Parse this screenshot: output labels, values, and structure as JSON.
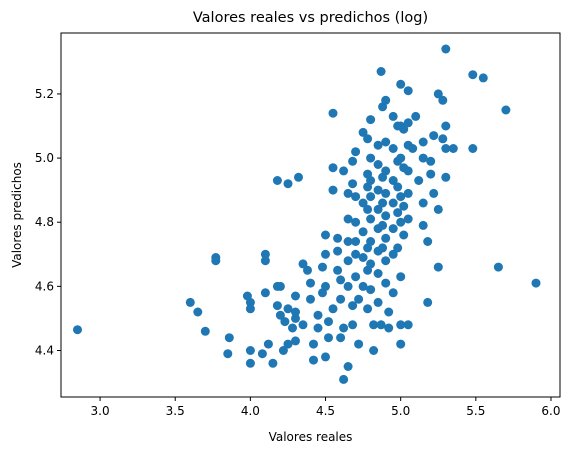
{
  "chart_data": {
    "type": "scatter",
    "title": "Valores reales vs predichos (log)",
    "xlabel": "Valores reales",
    "ylabel": "Valores predichos",
    "xlim": [
      2.74,
      6.06
    ],
    "ylim": [
      4.255,
      5.39
    ],
    "xticks": [
      "3.0",
      "3.5",
      "4.0",
      "4.5",
      "5.0",
      "5.5",
      "6.0"
    ],
    "yticks": [
      "4.4",
      "4.6",
      "4.8",
      "5.0",
      "5.2"
    ],
    "grid": false,
    "marker_color": "#1f77b4",
    "points": [
      [
        2.85,
        4.465
      ],
      [
        3.6,
        4.55
      ],
      [
        3.65,
        4.52
      ],
      [
        3.7,
        4.46
      ],
      [
        3.77,
        4.69
      ],
      [
        3.77,
        4.68
      ],
      [
        3.85,
        4.39
      ],
      [
        3.86,
        4.44
      ],
      [
        3.98,
        4.57
      ],
      [
        4.0,
        4.55
      ],
      [
        4.0,
        4.53
      ],
      [
        4.0,
        4.4
      ],
      [
        4.0,
        4.36
      ],
      [
        4.08,
        4.39
      ],
      [
        4.1,
        4.7
      ],
      [
        4.1,
        4.68
      ],
      [
        4.1,
        4.58
      ],
      [
        4.12,
        4.42
      ],
      [
        4.15,
        4.36
      ],
      [
        4.18,
        4.93
      ],
      [
        4.18,
        4.6
      ],
      [
        4.18,
        4.54
      ],
      [
        4.2,
        4.6
      ],
      [
        4.2,
        4.51
      ],
      [
        4.22,
        4.4
      ],
      [
        4.23,
        4.49
      ],
      [
        4.25,
        4.92
      ],
      [
        4.25,
        4.53
      ],
      [
        4.25,
        4.42
      ],
      [
        4.28,
        4.47
      ],
      [
        4.3,
        4.57
      ],
      [
        4.3,
        4.43
      ],
      [
        4.32,
        4.94
      ],
      [
        4.3,
        4.5
      ],
      [
        4.3,
        4.52
      ],
      [
        4.35,
        4.67
      ],
      [
        4.35,
        4.48
      ],
      [
        4.38,
        4.65
      ],
      [
        4.4,
        4.56
      ],
      [
        4.4,
        4.61
      ],
      [
        4.42,
        4.42
      ],
      [
        4.42,
        4.37
      ],
      [
        4.45,
        4.51
      ],
      [
        4.45,
        4.47
      ],
      [
        4.48,
        4.58
      ],
      [
        4.48,
        4.66
      ],
      [
        4.5,
        4.7
      ],
      [
        4.5,
        4.76
      ],
      [
        4.5,
        4.6
      ],
      [
        4.5,
        4.38
      ],
      [
        4.52,
        4.44
      ],
      [
        4.52,
        4.49
      ],
      [
        4.55,
        4.97
      ],
      [
        4.55,
        5.14
      ],
      [
        4.55,
        4.9
      ],
      [
        4.55,
        4.53
      ],
      [
        4.58,
        4.75
      ],
      [
        4.58,
        4.71
      ],
      [
        4.58,
        4.65
      ],
      [
        4.6,
        4.62
      ],
      [
        4.6,
        4.56
      ],
      [
        4.6,
        4.44
      ],
      [
        4.62,
        4.31
      ],
      [
        4.62,
        4.47
      ],
      [
        4.62,
        4.96
      ],
      [
        4.65,
        4.89
      ],
      [
        4.65,
        4.81
      ],
      [
        4.65,
        4.74
      ],
      [
        4.65,
        4.68
      ],
      [
        4.65,
        4.6
      ],
      [
        4.65,
        4.35
      ],
      [
        4.68,
        4.99
      ],
      [
        4.68,
        4.92
      ],
      [
        4.68,
        4.54
      ],
      [
        4.68,
        4.48
      ],
      [
        4.7,
        5.02
      ],
      [
        4.7,
        4.88
      ],
      [
        4.7,
        4.8
      ],
      [
        4.7,
        4.74
      ],
      [
        4.7,
        4.7
      ],
      [
        4.7,
        4.63
      ],
      [
        4.72,
        4.56
      ],
      [
        4.72,
        4.42
      ],
      [
        4.75,
        5.08
      ],
      [
        4.75,
        4.86
      ],
      [
        4.75,
        4.77
      ],
      [
        4.75,
        4.69
      ],
      [
        4.75,
        4.6
      ],
      [
        4.78,
        5.06
      ],
      [
        4.78,
        4.95
      ],
      [
        4.78,
        4.91
      ],
      [
        4.78,
        4.84
      ],
      [
        4.78,
        4.72
      ],
      [
        4.78,
        4.65
      ],
      [
        4.78,
        4.53
      ],
      [
        4.8,
        5.12
      ],
      [
        4.8,
        5.0
      ],
      [
        4.8,
        4.93
      ],
      [
        4.8,
        4.88
      ],
      [
        4.8,
        4.81
      ],
      [
        4.8,
        4.74
      ],
      [
        4.8,
        4.67
      ],
      [
        4.8,
        4.59
      ],
      [
        4.82,
        4.48
      ],
      [
        4.82,
        4.4
      ],
      [
        4.85,
        5.04
      ],
      [
        4.85,
        4.98
      ],
      [
        4.85,
        4.9
      ],
      [
        4.85,
        4.84
      ],
      [
        4.85,
        4.78
      ],
      [
        4.85,
        4.71
      ],
      [
        4.85,
        4.64
      ],
      [
        4.85,
        4.55
      ],
      [
        4.87,
        5.27
      ],
      [
        4.87,
        4.48
      ],
      [
        4.88,
        5.16
      ],
      [
        4.88,
        4.94
      ],
      [
        4.88,
        4.86
      ],
      [
        4.88,
        4.79
      ],
      [
        4.88,
        4.72
      ],
      [
        4.9,
        5.18
      ],
      [
        4.9,
        5.05
      ],
      [
        4.9,
        4.96
      ],
      [
        4.9,
        4.89
      ],
      [
        4.9,
        4.82
      ],
      [
        4.9,
        4.75
      ],
      [
        4.9,
        4.68
      ],
      [
        4.9,
        4.61
      ],
      [
        4.92,
        4.52
      ],
      [
        4.92,
        4.47
      ],
      [
        4.95,
        5.13
      ],
      [
        4.95,
        5.03
      ],
      [
        4.95,
        4.93
      ],
      [
        4.95,
        4.86
      ],
      [
        4.95,
        4.78
      ],
      [
        4.95,
        4.7
      ],
      [
        4.95,
        4.58
      ],
      [
        4.98,
        5.1
      ],
      [
        4.98,
        4.99
      ],
      [
        4.98,
        4.91
      ],
      [
        4.98,
        4.83
      ],
      [
        4.98,
        4.72
      ],
      [
        5.0,
        5.23
      ],
      [
        5.0,
        5.1
      ],
      [
        5.0,
        5.0
      ],
      [
        5.0,
        4.88
      ],
      [
        5.0,
        4.8
      ],
      [
        5.0,
        4.63
      ],
      [
        5.0,
        4.48
      ],
      [
        5.0,
        4.42
      ],
      [
        5.02,
        5.09
      ],
      [
        5.02,
        4.97
      ],
      [
        5.02,
        4.85
      ],
      [
        5.02,
        4.76
      ],
      [
        5.05,
        5.21
      ],
      [
        5.05,
        5.11
      ],
      [
        5.05,
        5.04
      ],
      [
        5.05,
        4.96
      ],
      [
        5.05,
        4.89
      ],
      [
        5.05,
        4.81
      ],
      [
        5.05,
        4.48
      ],
      [
        5.08,
        5.03
      ],
      [
        5.1,
        5.13
      ],
      [
        5.12,
        4.93
      ],
      [
        5.15,
        5.05
      ],
      [
        5.15,
        5.0
      ],
      [
        5.15,
        4.86
      ],
      [
        5.15,
        4.79
      ],
      [
        5.18,
        4.74
      ],
      [
        5.18,
        4.55
      ],
      [
        5.2,
        4.99
      ],
      [
        5.2,
        4.95
      ],
      [
        5.22,
        5.07
      ],
      [
        5.22,
        4.89
      ],
      [
        5.25,
        5.2
      ],
      [
        5.25,
        4.84
      ],
      [
        5.25,
        4.66
      ],
      [
        5.28,
        5.06
      ],
      [
        5.28,
        5.18
      ],
      [
        5.3,
        5.34
      ],
      [
        5.3,
        5.1
      ],
      [
        5.3,
        5.03
      ],
      [
        5.3,
        4.94
      ],
      [
        5.35,
        5.03
      ],
      [
        5.48,
        5.26
      ],
      [
        5.48,
        5.03
      ],
      [
        5.55,
        5.25
      ],
      [
        5.65,
        4.66
      ],
      [
        5.7,
        5.15
      ],
      [
        5.9,
        4.61
      ]
    ]
  }
}
